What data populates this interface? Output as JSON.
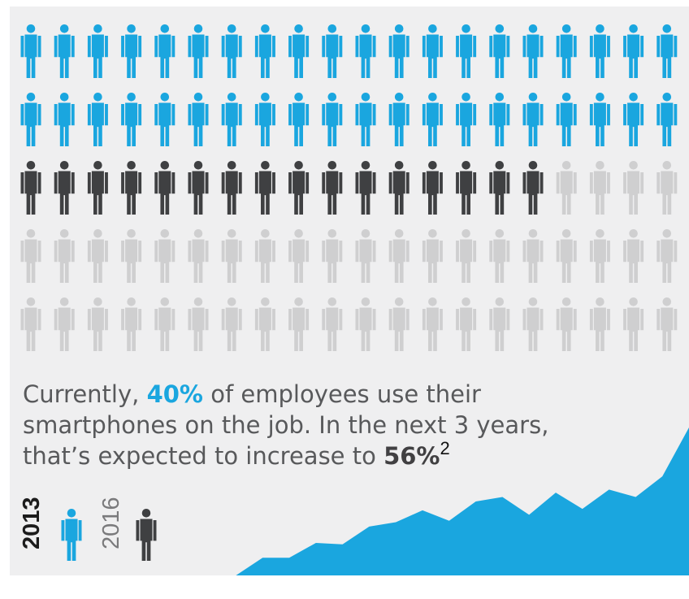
{
  "chart_data": {
    "type": "pictograph",
    "icons_per_row": 20,
    "rows": 5,
    "total_icons": 100,
    "colors": {
      "current": "#1aa6df",
      "added": "#3f4042",
      "remaining": "#cfcfd0",
      "area": "#1aa6df",
      "background": "#efeff0"
    },
    "values": [
      {
        "category": "2013",
        "percent": 40,
        "color": "#1aa6df"
      },
      {
        "category": "2016",
        "percent": 56,
        "color": "#3f4042"
      }
    ],
    "area_trend": [
      0,
      0,
      0,
      0,
      0.12,
      0.12,
      0.22,
      0.21,
      0.33,
      0.36,
      0.44,
      0.37,
      0.5,
      0.53,
      0.41,
      0.56,
      0.45,
      0.58,
      0.53,
      0.67,
      1.0
    ]
  },
  "caption": {
    "part1": "Currently, ",
    "highlight": "40%",
    "part2": " of employees use their smartphones on the job. In the next 3 years, that’s expected to increase to ",
    "emphasis": "56%",
    "footnote": "2"
  },
  "legend": {
    "year_current": "2013",
    "year_future": "2016",
    "icon": "person-icon"
  }
}
